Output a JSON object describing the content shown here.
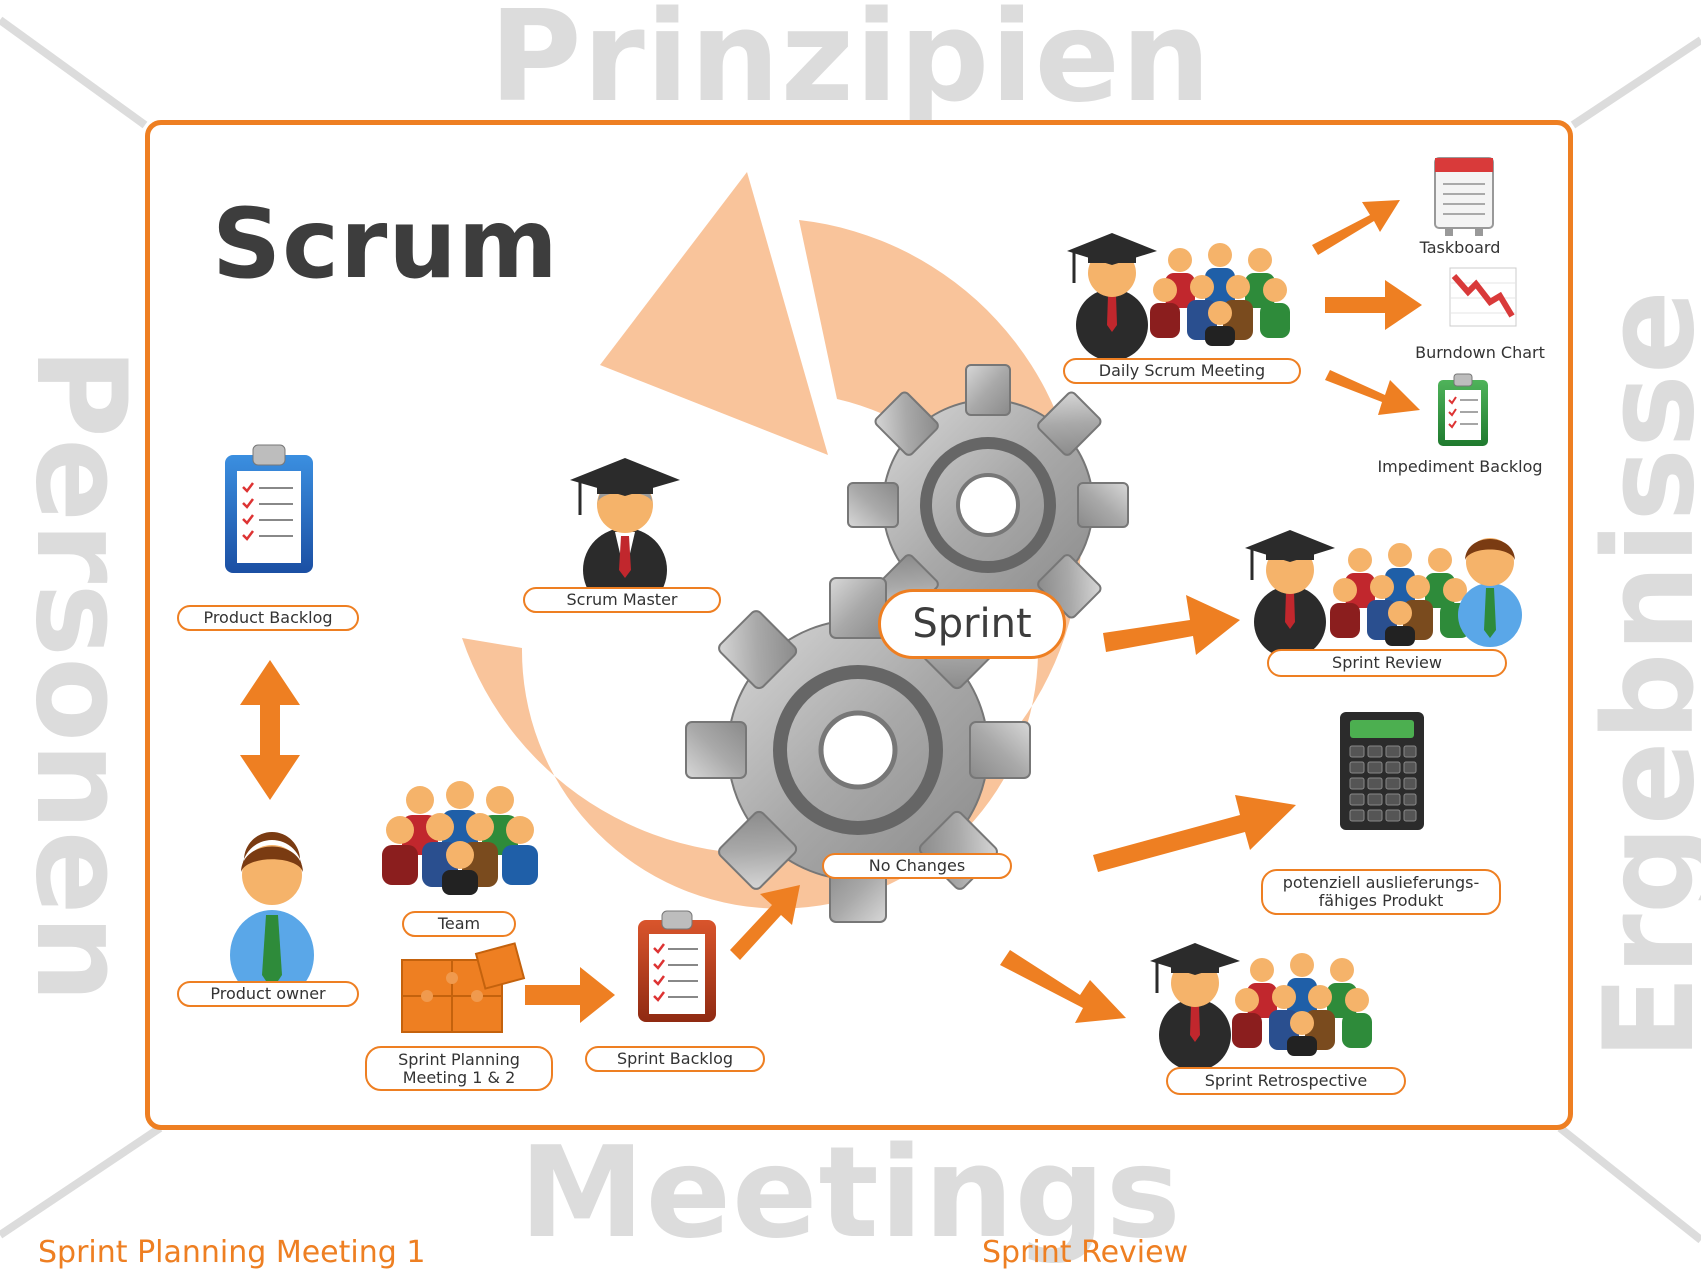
{
  "frame_words": {
    "top": "Prinzipien",
    "left": "Personen",
    "right": "Ergebnisse",
    "bottom": "Meetings"
  },
  "footer_partial": {
    "left": "Sprint Planning Meeting 1",
    "right": "Sprint Review"
  },
  "title": "Scrum",
  "center_label": "Sprint",
  "labels": {
    "product_backlog": "Product Backlog",
    "product_owner": "Product owner",
    "team": "Team",
    "sprint_planning": "Sprint Planning\nMeeting 1 & 2",
    "sprint_backlog": "Sprint Backlog",
    "scrum_master": "Scrum Master",
    "no_changes": "No Changes",
    "daily_scrum": "Daily Scrum Meeting",
    "taskboard": "Taskboard",
    "burndown": "Burndown Chart",
    "impediment": "Impediment Backlog",
    "sprint_review": "Sprint Review",
    "product_increment": "potenziell auslieferungs-\nfähiges Produkt",
    "retrospective": "Sprint Retrospective"
  },
  "colors": {
    "accent": "#ee7f22",
    "cycle": "#f9c49b",
    "frame_text": "#dcdcdc",
    "title_text": "#3d3d3d"
  },
  "icons": [
    "clipboard-icon",
    "person-icon",
    "team-icon",
    "puzzle-icon",
    "graduate-icon",
    "gear-icon",
    "calendar-icon",
    "burndown-chart-icon",
    "calculator-icon",
    "arrow-icon"
  ]
}
